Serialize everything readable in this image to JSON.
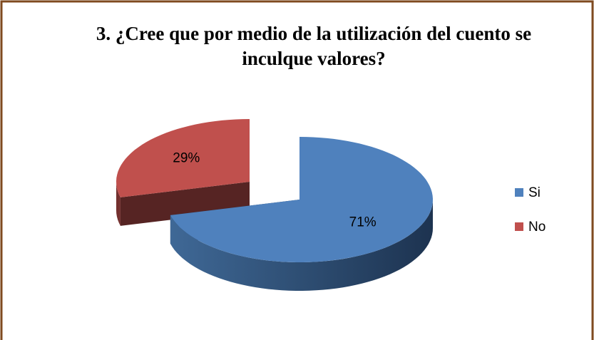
{
  "chart_data": {
    "type": "pie3d",
    "title": "3. ¿Cree que por medio de la utilización del cuento se inculque valores?",
    "categories": [
      "Si",
      "No"
    ],
    "values": [
      71,
      29
    ],
    "value_labels": [
      "71%",
      "29%"
    ],
    "colors": [
      "#4f81bd",
      "#c0504d"
    ],
    "exploded": [
      false,
      true
    ],
    "legend": "right"
  }
}
